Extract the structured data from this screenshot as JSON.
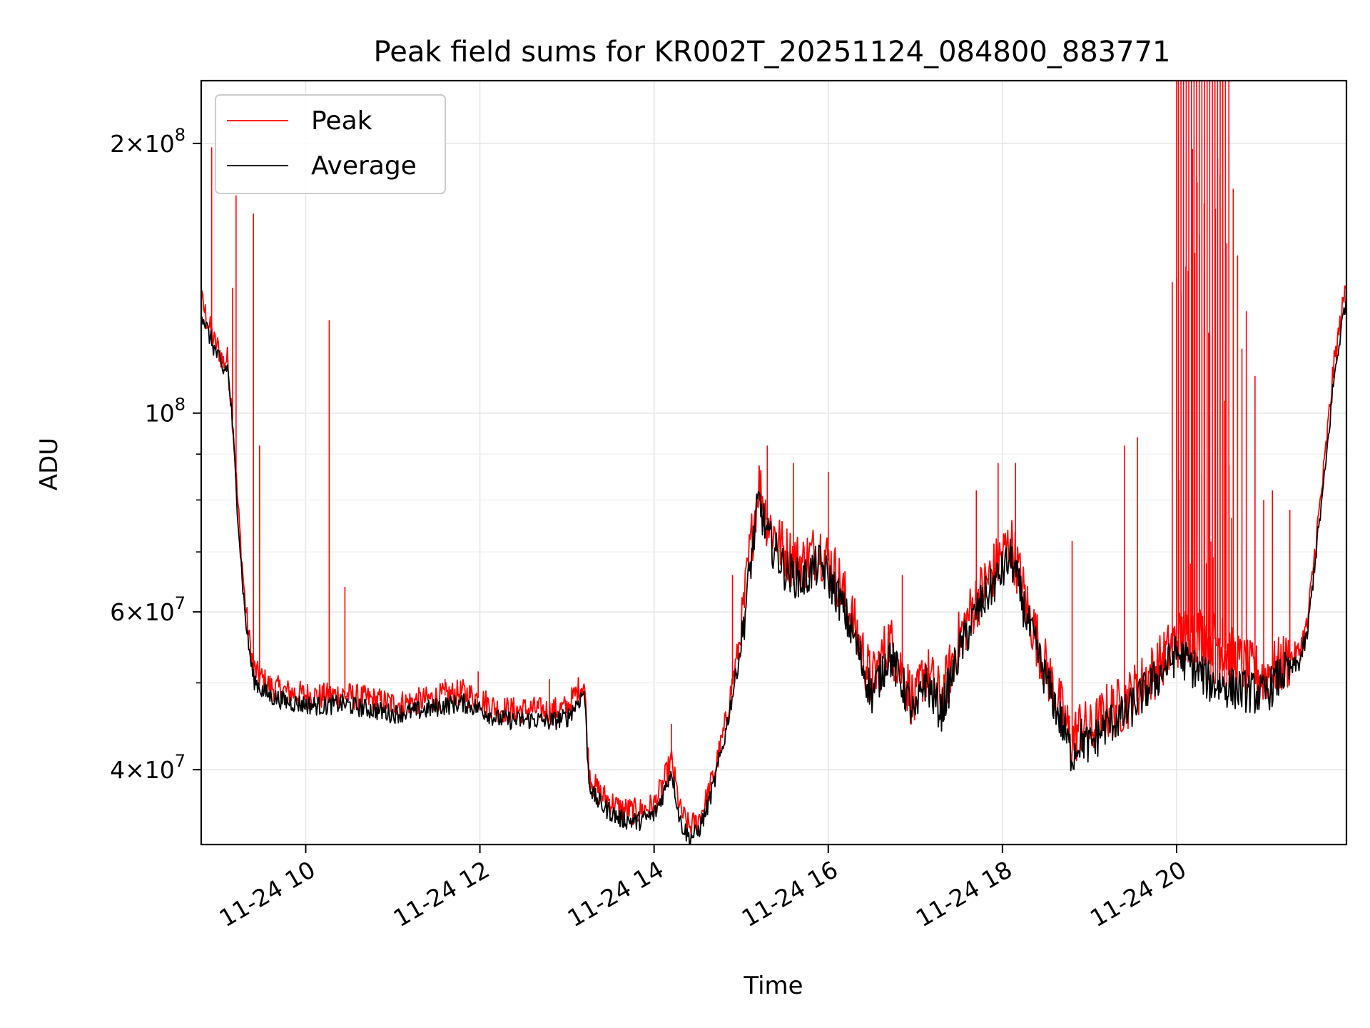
{
  "chart_data": {
    "type": "line",
    "title": "Peak field sums for KR002T_20251124_084800_883771",
    "xlabel": "Time",
    "ylabel": "ADU",
    "yscale": "log",
    "xlim": [
      8.8,
      21.95
    ],
    "ylim": [
      33000000,
      235000000
    ],
    "x_unit": "hour of 2025-11-24",
    "x_ticks": [
      {
        "value": 10,
        "label": "11-24 10"
      },
      {
        "value": 12,
        "label": "11-24 12"
      },
      {
        "value": 14,
        "label": "11-24 14"
      },
      {
        "value": 16,
        "label": "11-24 16"
      },
      {
        "value": 18,
        "label": "11-24 18"
      },
      {
        "value": 20,
        "label": "11-24 20"
      }
    ],
    "y_ticks": [
      {
        "value": 40000000,
        "mantissa": "4",
        "exp": "7"
      },
      {
        "value": 60000000,
        "mantissa": "6",
        "exp": "7"
      },
      {
        "value": 100000000,
        "mantissa": "",
        "exp": "8"
      },
      {
        "value": 200000000,
        "mantissa": "2",
        "exp": "8"
      }
    ],
    "y_minor_ticks": [
      50000000,
      70000000,
      80000000,
      90000000
    ],
    "grid": true,
    "legend": "upper-left",
    "series": [
      {
        "name": "Peak",
        "color": "#ff0000",
        "x": [
          8.8,
          8.88,
          8.95,
          9.0,
          9.05,
          9.1,
          9.15,
          9.2,
          9.25,
          9.3,
          9.35,
          9.4,
          9.45,
          9.5,
          9.6,
          9.8,
          10.0,
          10.2,
          10.4,
          10.6,
          10.8,
          11.0,
          11.2,
          11.4,
          11.6,
          11.8,
          12.0,
          12.2,
          12.4,
          12.6,
          12.8,
          13.0,
          13.15,
          13.2,
          13.25,
          13.3,
          13.4,
          13.6,
          13.8,
          14.0,
          14.1,
          14.2,
          14.3,
          14.4,
          14.5,
          14.6,
          14.7,
          14.8,
          14.9,
          15.0,
          15.1,
          15.2,
          15.3,
          15.5,
          15.7,
          15.9,
          16.1,
          16.3,
          16.5,
          16.7,
          16.9,
          17.0,
          17.1,
          17.3,
          17.5,
          17.7,
          17.9,
          18.1,
          18.3,
          18.5,
          18.7,
          18.8,
          18.9,
          19.0,
          19.2,
          19.4,
          19.6,
          19.8,
          20.0,
          20.2,
          20.4,
          20.6,
          20.8,
          21.0,
          21.2,
          21.4,
          21.5,
          21.6,
          21.7,
          21.8,
          21.95
        ],
        "y": [
          134000000,
          126000000,
          120000000,
          118000000,
          114000000,
          115000000,
          102000000,
          85000000,
          72000000,
          62000000,
          56000000,
          52000000,
          51000000,
          50500000,
          49500000,
          48800000,
          48500000,
          48300000,
          48600000,
          48200000,
          47800000,
          47400000,
          47600000,
          47900000,
          48400000,
          48800000,
          48000000,
          46800000,
          46600000,
          46700000,
          46500000,
          46900000,
          49500000,
          50000000,
          40000000,
          38500000,
          37500000,
          36200000,
          35900000,
          36500000,
          38500000,
          41000000,
          36000000,
          34500000,
          35000000,
          37000000,
          40000000,
          44000000,
          50000000,
          57000000,
          70000000,
          84000000,
          76000000,
          70000000,
          68000000,
          71000000,
          66000000,
          58000000,
          50000000,
          56000000,
          50000000,
          47000000,
          52000000,
          48000000,
          56000000,
          62000000,
          67000000,
          72000000,
          60000000,
          52000000,
          46000000,
          43000000,
          45000000,
          44000000,
          46500000,
          47500000,
          50000000,
          52500000,
          56000000,
          57000000,
          56500000,
          54000000,
          52000000,
          51000000,
          52500000,
          54000000,
          58000000,
          72000000,
          88000000,
          112000000,
          140000000
        ],
        "spikes": [
          {
            "x": 8.92,
            "y": 198000000
          },
          {
            "x": 9.16,
            "y": 138000000
          },
          {
            "x": 9.2,
            "y": 175000000
          },
          {
            "x": 9.4,
            "y": 167000000
          },
          {
            "x": 9.47,
            "y": 92000000
          },
          {
            "x": 10.27,
            "y": 127000000
          },
          {
            "x": 10.45,
            "y": 64000000
          },
          {
            "x": 11.6,
            "y": 50500000
          },
          {
            "x": 11.98,
            "y": 51500000
          },
          {
            "x": 12.8,
            "y": 50500000
          },
          {
            "x": 14.2,
            "y": 45000000
          },
          {
            "x": 14.9,
            "y": 66000000
          },
          {
            "x": 15.3,
            "y": 92000000
          },
          {
            "x": 15.6,
            "y": 88000000
          },
          {
            "x": 16.0,
            "y": 86000000
          },
          {
            "x": 16.85,
            "y": 66000000
          },
          {
            "x": 17.7,
            "y": 82000000
          },
          {
            "x": 17.95,
            "y": 88000000
          },
          {
            "x": 18.15,
            "y": 88000000
          },
          {
            "x": 18.8,
            "y": 72000000
          },
          {
            "x": 19.4,
            "y": 92000000
          },
          {
            "x": 19.55,
            "y": 94000000
          },
          {
            "x": 19.95,
            "y": 140000000
          },
          {
            "x": 20.0,
            "y": 235000000
          },
          {
            "x": 20.02,
            "y": 235000000
          },
          {
            "x": 20.05,
            "y": 235000000
          },
          {
            "x": 20.08,
            "y": 235000000
          },
          {
            "x": 20.11,
            "y": 235000000
          },
          {
            "x": 20.14,
            "y": 235000000
          },
          {
            "x": 20.17,
            "y": 235000000
          },
          {
            "x": 20.2,
            "y": 235000000
          },
          {
            "x": 20.23,
            "y": 235000000
          },
          {
            "x": 20.26,
            "y": 235000000
          },
          {
            "x": 20.29,
            "y": 235000000
          },
          {
            "x": 20.32,
            "y": 235000000
          },
          {
            "x": 20.35,
            "y": 235000000
          },
          {
            "x": 20.38,
            "y": 235000000
          },
          {
            "x": 20.41,
            "y": 235000000
          },
          {
            "x": 20.44,
            "y": 235000000
          },
          {
            "x": 20.47,
            "y": 235000000
          },
          {
            "x": 20.5,
            "y": 235000000
          },
          {
            "x": 20.53,
            "y": 235000000
          },
          {
            "x": 20.56,
            "y": 235000000
          },
          {
            "x": 20.6,
            "y": 235000000
          },
          {
            "x": 20.65,
            "y": 178000000
          },
          {
            "x": 20.7,
            "y": 150000000
          },
          {
            "x": 20.75,
            "y": 118000000
          },
          {
            "x": 20.8,
            "y": 130000000
          },
          {
            "x": 20.9,
            "y": 110000000
          },
          {
            "x": 21.0,
            "y": 80000000
          },
          {
            "x": 21.1,
            "y": 82000000
          },
          {
            "x": 21.3,
            "y": 78000000
          }
        ],
        "red_band": [
          20.0,
          20.65
        ]
      },
      {
        "name": "Average",
        "color": "#000000",
        "x": [
          8.8,
          8.88,
          8.95,
          9.0,
          9.05,
          9.1,
          9.15,
          9.2,
          9.25,
          9.3,
          9.35,
          9.4,
          9.45,
          9.5,
          9.6,
          9.8,
          10.0,
          10.2,
          10.4,
          10.6,
          10.8,
          11.0,
          11.2,
          11.4,
          11.6,
          11.8,
          12.0,
          12.2,
          12.4,
          12.6,
          12.8,
          13.0,
          13.15,
          13.2,
          13.25,
          13.3,
          13.4,
          13.6,
          13.8,
          14.0,
          14.1,
          14.2,
          14.3,
          14.4,
          14.5,
          14.6,
          14.7,
          14.8,
          14.9,
          15.0,
          15.1,
          15.2,
          15.3,
          15.5,
          15.7,
          15.9,
          16.1,
          16.3,
          16.5,
          16.7,
          16.9,
          17.0,
          17.1,
          17.3,
          17.5,
          17.7,
          17.9,
          18.1,
          18.3,
          18.5,
          18.7,
          18.8,
          18.9,
          19.0,
          19.2,
          19.4,
          19.6,
          19.8,
          20.0,
          20.2,
          20.4,
          20.6,
          20.8,
          21.0,
          21.2,
          21.4,
          21.5,
          21.6,
          21.7,
          21.8,
          21.95
        ],
        "y": [
          130000000,
          123000000,
          118000000,
          115000000,
          111000000,
          113000000,
          100000000,
          83000000,
          70000000,
          60000000,
          54500000,
          50500000,
          49800000,
          49000000,
          48300000,
          47600000,
          47300000,
          47100000,
          47400000,
          47000000,
          46600000,
          46200000,
          46400000,
          46700000,
          47200000,
          47500000,
          46800000,
          45600000,
          45400000,
          45500000,
          45300000,
          45700000,
          48000000,
          49000000,
          39000000,
          37500000,
          36500000,
          35300000,
          35000000,
          35600000,
          37500000,
          40000000,
          35000000,
          33600000,
          34000000,
          36000000,
          39000000,
          43000000,
          48500000,
          55000000,
          67000000,
          80000000,
          73000000,
          67000000,
          65000000,
          68000000,
          63000000,
          56000000,
          48500000,
          54000000,
          48500000,
          45500000,
          50500000,
          46500000,
          54000000,
          60000000,
          64500000,
          69000000,
          58000000,
          50500000,
          44500000,
          41500000,
          43500000,
          42500000,
          45000000,
          46000000,
          48500000,
          51000000,
          54000000,
          52000000,
          50000000,
          49500000,
          49000000,
          48500000,
          51000000,
          52500000,
          56500000,
          70000000,
          85000000,
          108000000,
          136000000
        ]
      }
    ]
  }
}
